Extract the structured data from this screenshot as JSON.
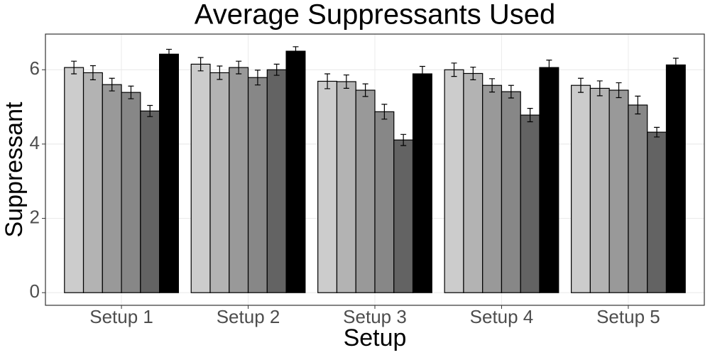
{
  "chart_data": {
    "type": "bar",
    "title": "Average Suppressants Used",
    "x_label": "Setup",
    "y_label": "Suppressant",
    "categories": [
      "Setup 1",
      "Setup 2",
      "Setup 3",
      "Setup 4",
      "Setup 5"
    ],
    "series": [
      {
        "color": "#cccccc",
        "values": [
          6.06,
          6.15,
          5.69,
          6.0,
          5.58
        ],
        "errors": [
          0.17,
          0.18,
          0.2,
          0.18,
          0.19
        ]
      },
      {
        "color": "#b3b3b3",
        "values": [
          5.92,
          5.92,
          5.68,
          5.9,
          5.5
        ],
        "errors": [
          0.19,
          0.18,
          0.18,
          0.17,
          0.2
        ]
      },
      {
        "color": "#999999",
        "values": [
          5.6,
          6.06,
          5.45,
          5.58,
          5.45
        ],
        "errors": [
          0.17,
          0.17,
          0.17,
          0.18,
          0.2
        ]
      },
      {
        "color": "#878787",
        "values": [
          5.39,
          5.79,
          4.87,
          5.41,
          5.05
        ],
        "errors": [
          0.17,
          0.2,
          0.2,
          0.17,
          0.24
        ]
      },
      {
        "color": "#636363",
        "values": [
          4.89,
          6.0,
          4.11,
          4.78,
          4.32
        ],
        "errors": [
          0.15,
          0.15,
          0.15,
          0.18,
          0.13
        ]
      },
      {
        "color": "#000000",
        "values": [
          6.42,
          6.5,
          5.89,
          6.06,
          6.13
        ],
        "errors": [
          0.13,
          0.12,
          0.2,
          0.2,
          0.18
        ]
      }
    ],
    "ylim": [
      -0.34,
      6.96
    ],
    "yticks": [
      0,
      2,
      4,
      6
    ],
    "grid": true
  }
}
